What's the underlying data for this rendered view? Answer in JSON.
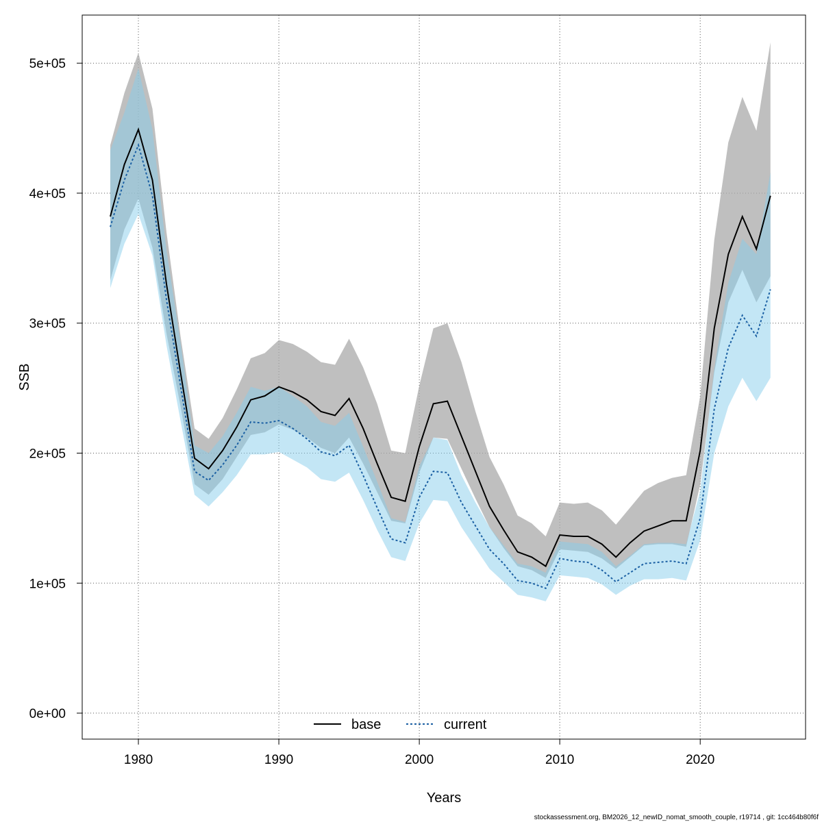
{
  "chart_data": {
    "type": "line",
    "xlabel": "Years",
    "ylabel": "SSB",
    "xlim": [
      1976,
      2027.5
    ],
    "ylim": [
      -20000,
      537000
    ],
    "xticks": [
      1980,
      1990,
      2000,
      2010,
      2020
    ],
    "xtick_labels": [
      "1980",
      "1990",
      "2000",
      "2010",
      "2020"
    ],
    "yticks": [
      0,
      100000,
      200000,
      300000,
      400000,
      500000
    ],
    "ytick_labels": [
      "0e+00",
      "1e+05",
      "2e+05",
      "3e+05",
      "4e+05",
      "5e+05"
    ],
    "grid": true,
    "legend_position": "bottom",
    "years": [
      1978,
      1979,
      1980,
      1981,
      1982,
      1983,
      1984,
      1985,
      1986,
      1987,
      1988,
      1989,
      1990,
      1991,
      1992,
      1993,
      1994,
      1995,
      1996,
      1997,
      1998,
      1999,
      2000,
      2001,
      2002,
      2003,
      2004,
      2005,
      2006,
      2007,
      2008,
      2009,
      2010,
      2011,
      2012,
      2013,
      2014,
      2015,
      2016,
      2017,
      2018,
      2019,
      2020,
      2021,
      2022,
      2023,
      2024,
      2025
    ],
    "series": [
      {
        "name": "base",
        "line_style": "solid",
        "line_color": "#000000",
        "band_color": "#a9a9a9",
        "values": [
          382000,
          422000,
          449000,
          410000,
          330000,
          262000,
          196000,
          188000,
          202000,
          220000,
          241000,
          244000,
          251000,
          247000,
          241000,
          232000,
          229000,
          242000,
          219000,
          192000,
          166000,
          163000,
          205000,
          238000,
          240000,
          213000,
          186000,
          159000,
          141000,
          124000,
          120000,
          113000,
          137000,
          136000,
          136000,
          130000,
          120000,
          131000,
          140000,
          144000,
          148000,
          148000,
          202000,
          296000,
          353000,
          382000,
          357000,
          398000
        ],
        "lower": [
          333000,
          372000,
          396000,
          358000,
          292000,
          236000,
          176000,
          168000,
          180000,
          197000,
          214000,
          216000,
          222000,
          218000,
          212000,
          204000,
          200000,
          212000,
          192000,
          170000,
          148000,
          146000,
          185000,
          212000,
          211000,
          188000,
          165000,
          143000,
          127000,
          113000,
          110000,
          104000,
          126000,
          125000,
          124000,
          119000,
          111000,
          120000,
          129000,
          130000,
          130000,
          128000,
          176000,
          262000,
          316000,
          341000,
          316000,
          336000
        ],
        "upper": [
          437000,
          477000,
          508000,
          465000,
          370000,
          290000,
          219000,
          211000,
          227000,
          249000,
          273000,
          277000,
          287000,
          284000,
          278000,
          270000,
          268000,
          288000,
          266000,
          238000,
          202000,
          200000,
          252000,
          296000,
          300000,
          270000,
          232000,
          197000,
          176000,
          152000,
          146000,
          136000,
          162000,
          161000,
          162000,
          156000,
          145000,
          158000,
          171000,
          177000,
          181000,
          183000,
          244000,
          364000,
          439000,
          474000,
          448000,
          516000
        ]
      },
      {
        "name": "current",
        "line_style": "dashed",
        "line_color": "#1a5fa3",
        "band_color": "#87ceeb",
        "values": [
          374000,
          410000,
          437000,
          398000,
          318000,
          252000,
          186000,
          179000,
          191000,
          206000,
          224000,
          223000,
          225000,
          219000,
          211000,
          201000,
          198000,
          206000,
          183000,
          158000,
          134000,
          131000,
          166000,
          186000,
          185000,
          162000,
          144000,
          126000,
          115000,
          102000,
          100000,
          96000,
          119000,
          117000,
          116000,
          110000,
          101000,
          108000,
          115000,
          116000,
          117000,
          115000,
          150000,
          234000,
          281000,
          306000,
          290000,
          326000
        ],
        "lower": [
          327000,
          361000,
          384000,
          352000,
          283000,
          225000,
          168000,
          159000,
          170000,
          183000,
          199000,
          199000,
          201000,
          195000,
          189000,
          180000,
          178000,
          185000,
          164000,
          141000,
          120000,
          117000,
          146000,
          164000,
          163000,
          143000,
          127000,
          111000,
          101000,
          91000,
          89000,
          86000,
          106000,
          105000,
          104000,
          99000,
          91000,
          98000,
          103000,
          103000,
          104000,
          102000,
          133000,
          200000,
          236000,
          258000,
          240000,
          258000
        ],
        "upper": [
          433000,
          462000,
          496000,
          449000,
          356000,
          285000,
          206000,
          200000,
          213000,
          231000,
          251000,
          248000,
          251000,
          244000,
          236000,
          224000,
          221000,
          231000,
          205000,
          178000,
          150000,
          147000,
          190000,
          212000,
          210000,
          183000,
          162000,
          143000,
          129000,
          115000,
          113000,
          108000,
          132000,
          131000,
          130000,
          124000,
          113000,
          121000,
          130000,
          131000,
          131000,
          130000,
          171000,
          265000,
          331000,
          365000,
          353000,
          416000
        ]
      }
    ]
  },
  "footer_text": "stockassessment.org, BM2026_12_newID_nomat_smooth_couple, r19714 , git: 1cc464b80f6f"
}
